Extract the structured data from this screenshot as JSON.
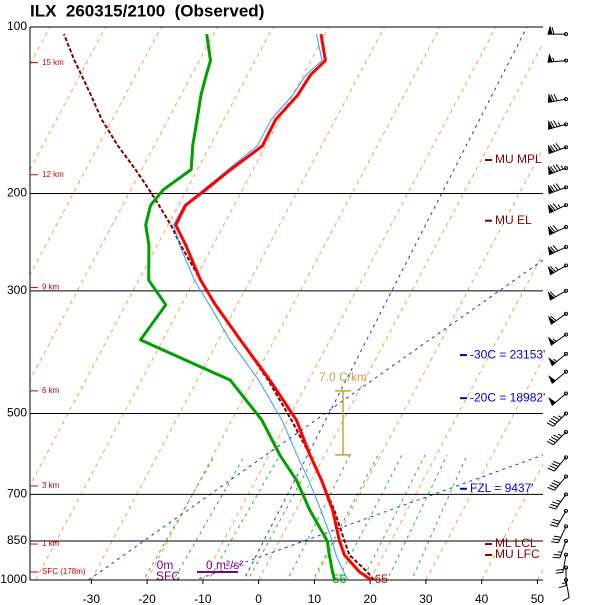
{
  "chart_data": {
    "type": "skewt",
    "title": "ILX  260315/2100  (Observed)",
    "ylim": [
      100,
      1000
    ],
    "ylog": true,
    "yticks": [
      100,
      200,
      300,
      500,
      700,
      850,
      1000
    ],
    "xlim": [
      -41,
      51
    ],
    "xticks": [
      -30,
      -20,
      -10,
      0,
      10,
      20,
      30,
      40,
      50
    ],
    "pressure": [
      1000,
      967,
      901,
      850,
      747,
      660,
      594,
      514,
      435,
      368,
      318,
      287,
      248,
      228,
      210,
      197,
      181,
      164,
      147,
      133,
      122,
      115,
      103
    ],
    "series": [
      {
        "color": "#800000",
        "dashed": true,
        "width": 2,
        "values": [
          20.7,
          18.7,
          13.9,
          11.7,
          6.9,
          1.8,
          -2.7,
          -9.3,
          -17.3,
          -26.1,
          -33.9,
          -38.9,
          -45.8,
          -49.5,
          -53.5,
          -56.7,
          -61.1,
          -66.5,
          -71.9,
          -76.1,
          -79.8,
          -82.4,
          -86.8
        ]
      },
      {
        "color": "#3399ff",
        "width": 1,
        "values": [
          16,
          14.5,
          11.5,
          9.5,
          4.5,
          -0.5,
          -5,
          -11,
          -19,
          -28,
          -35,
          -40,
          -46,
          -49,
          -49,
          -47,
          -44.5,
          -41.5,
          -41.5,
          -40,
          -39.5,
          -38,
          -41.5
        ]
      },
      {
        "color": "#00a000",
        "width": 3,
        "values": [
          13.6,
          12.5,
          10.3,
          8.6,
          2.5,
          -2.7,
          -8.1,
          -14.6,
          -24.1,
          -44.0,
          -42.8,
          -48.2,
          -51.5,
          -54.0,
          -55.0,
          -54.2,
          -51.1,
          -53.1,
          -54.8,
          -56.4,
          -57.4,
          -58.0,
          -61.2
        ]
      },
      {
        "color": "#ff0000",
        "width": 3,
        "values": [
          20.2,
          17.3,
          13.0,
          10.8,
          6.6,
          1.8,
          -2.7,
          -8.4,
          -17.0,
          -26.1,
          -33.9,
          -38.9,
          -44.9,
          -48.6,
          -48.7,
          -46.6,
          -44.0,
          -40.6,
          -40.7,
          -39.1,
          -38.7,
          -37.4,
          -40.7
        ]
      }
    ],
    "height_labels": [
      {
        "label": "15 km",
        "pressure": 116
      },
      {
        "label": "12 km",
        "pressure": 185
      },
      {
        "label": "9 km",
        "pressure": 296
      },
      {
        "label": "6 km",
        "pressure": 455
      },
      {
        "label": "3 km",
        "pressure": 676
      },
      {
        "label": "1 km",
        "pressure": 861
      },
      {
        "label": "SFC (178m)",
        "pressure": 967
      }
    ],
    "levels": [
      {
        "label": "MU MPL",
        "pressure": 174,
        "color": "#800000"
      },
      {
        "label": "MU EL",
        "pressure": 224,
        "color": "#800000"
      },
      {
        "label": "-30C = 23153'",
        "pressure": 392,
        "color": "#0000cc"
      },
      {
        "label": "-20C = 18982'",
        "pressure": 469,
        "color": "#0000cc"
      },
      {
        "label": "FZL = 9437'",
        "pressure": 684,
        "color": "#0000cc"
      },
      {
        "label": "ML LCL",
        "pressure": 861,
        "color": "#800000"
      },
      {
        "label": "MU LFC",
        "pressure": 901,
        "color": "#800000"
      }
    ],
    "lapse": {
      "label": "7.0 C/km",
      "top": 455,
      "bottom": 594
    },
    "surface_labels": {
      "dewpoint": "56",
      "temperature": "65"
    },
    "helicity": {
      "depth": "0m",
      "layer": "SFC",
      "value": "0 m²/s²"
    },
    "winds": [
      {
        "pressure": 103,
        "dir": 270,
        "speed": 60
      },
      {
        "pressure": 115,
        "dir": 265,
        "speed": 55
      },
      {
        "pressure": 135,
        "dir": 260,
        "speed": 70
      },
      {
        "pressure": 150,
        "dir": 255,
        "speed": 75
      },
      {
        "pressure": 165,
        "dir": 250,
        "speed": 80
      },
      {
        "pressure": 180,
        "dir": 250,
        "speed": 85
      },
      {
        "pressure": 195,
        "dir": 250,
        "speed": 80
      },
      {
        "pressure": 210,
        "dir": 245,
        "speed": 75
      },
      {
        "pressure": 230,
        "dir": 245,
        "speed": 70
      },
      {
        "pressure": 250,
        "dir": 245,
        "speed": 70
      },
      {
        "pressure": 270,
        "dir": 240,
        "speed": 65
      },
      {
        "pressure": 300,
        "dir": 240,
        "speed": 60
      },
      {
        "pressure": 330,
        "dir": 235,
        "speed": 60
      },
      {
        "pressure": 360,
        "dir": 235,
        "speed": 55
      },
      {
        "pressure": 390,
        "dir": 230,
        "speed": 55
      },
      {
        "pressure": 420,
        "dir": 230,
        "speed": 50
      },
      {
        "pressure": 460,
        "dir": 230,
        "speed": 50
      },
      {
        "pressure": 500,
        "dir": 225,
        "speed": 45
      },
      {
        "pressure": 540,
        "dir": 225,
        "speed": 45
      },
      {
        "pressure": 600,
        "dir": 220,
        "speed": 40
      },
      {
        "pressure": 650,
        "dir": 220,
        "speed": 40
      },
      {
        "pressure": 700,
        "dir": 215,
        "speed": 35
      },
      {
        "pressure": 750,
        "dir": 210,
        "speed": 30
      },
      {
        "pressure": 800,
        "dir": 205,
        "speed": 30
      },
      {
        "pressure": 850,
        "dir": 200,
        "speed": 25
      },
      {
        "pressure": 900,
        "dir": 190,
        "speed": 20
      },
      {
        "pressure": 950,
        "dir": 180,
        "speed": 15
      },
      {
        "pressure": 1000,
        "dir": 170,
        "speed": 10
      }
    ]
  }
}
